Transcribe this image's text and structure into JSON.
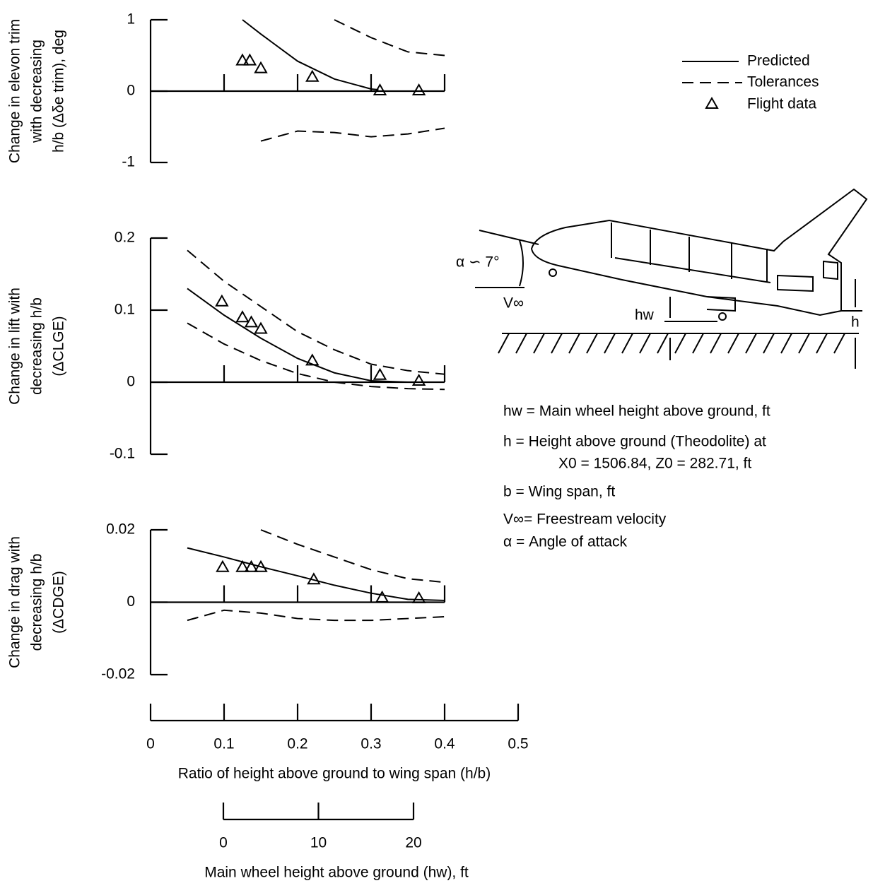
{
  "chart_data": {
    "type": "line",
    "xlim": [
      0,
      0.5
    ],
    "xticks": [
      0,
      0.1,
      0.2,
      0.3,
      0.4,
      0.5
    ],
    "xlabel": "Ratio of height above ground to wing span (h/b)",
    "hw_axis": {
      "lim": [
        0,
        20
      ],
      "ticks": [
        0,
        10,
        20
      ],
      "label": "Main wheel height above ground (hw), ft"
    },
    "panels": [
      {
        "ylabel": [
          "Change in elevon trim",
          "with decreasing",
          "h/b (Δδe trim), deg"
        ],
        "ylim": [
          -1,
          1
        ],
        "yticks": [
          -1,
          0,
          1
        ],
        "series": [
          {
            "name": "Predicted",
            "style": "solid",
            "color": "#000000",
            "x": [
              0.125,
              0.15,
              0.2,
              0.25,
              0.3,
              0.31
            ],
            "values": [
              1,
              0.8,
              0.42,
              0.17,
              0.03,
              0.02
            ]
          },
          {
            "name": "Tolerances",
            "style": "dashed",
            "color": "#000000",
            "x": [
              0.25,
              0.3,
              0.35,
              0.4
            ],
            "values": [
              1,
              0.75,
              0.55,
              0.5
            ]
          },
          {
            "name": "Tolerances",
            "style": "dashed",
            "color": "#000000",
            "x": [
              0.15,
              0.2,
              0.25,
              0.3,
              0.35,
              0.4
            ],
            "values": [
              -0.7,
              -0.56,
              -0.58,
              -0.64,
              -0.6,
              -0.52
            ]
          },
          {
            "name": "Flight data",
            "style": "triangle",
            "color": "#000000",
            "x": [
              0.125,
              0.135,
              0.15,
              0.22,
              0.312,
              0.365
            ],
            "values": [
              0.43,
              0.43,
              0.32,
              0.2,
              0.01,
              0.01
            ]
          }
        ]
      },
      {
        "ylabel": [
          "Change in lift with",
          "decreasing h/b",
          "(ΔCLGE)"
        ],
        "ylim": [
          -0.1,
          0.2
        ],
        "yticks": [
          -0.1,
          0,
          0.1,
          0.2
        ],
        "series": [
          {
            "name": "Predicted",
            "style": "solid",
            "color": "#000000",
            "x": [
              0.05,
              0.1,
              0.15,
              0.2,
              0.25,
              0.3,
              0.35
            ],
            "values": [
              0.13,
              0.093,
              0.061,
              0.033,
              0.013,
              0.002,
              0
            ]
          },
          {
            "name": "Tolerances",
            "style": "dashed",
            "color": "#000000",
            "x": [
              0.05,
              0.1,
              0.15,
              0.2,
              0.25,
              0.3,
              0.35,
              0.4
            ],
            "values": [
              0.183,
              0.14,
              0.105,
              0.07,
              0.045,
              0.025,
              0.016,
              0.011
            ]
          },
          {
            "name": "Tolerances",
            "style": "dashed",
            "color": "#000000",
            "x": [
              0.05,
              0.1,
              0.15,
              0.2,
              0.25,
              0.3,
              0.35,
              0.4
            ],
            "values": [
              0.082,
              0.053,
              0.03,
              0.012,
              0,
              -0.006,
              -0.009,
              -0.01
            ]
          },
          {
            "name": "Flight data",
            "style": "triangle",
            "color": "#000000",
            "x": [
              0.097,
              0.125,
              0.137,
              0.15,
              0.22,
              0.312,
              0.365
            ],
            "values": [
              0.112,
              0.09,
              0.083,
              0.074,
              0.03,
              0.01,
              0.002
            ]
          }
        ]
      },
      {
        "ylabel": [
          "Change in drag with",
          "decreasing h/b",
          "(ΔCDGE)"
        ],
        "ylim": [
          -0.02,
          0.02
        ],
        "yticks": [
          -0.02,
          0,
          0.02
        ],
        "series": [
          {
            "name": "Predicted",
            "style": "solid",
            "color": "#000000",
            "x": [
              0.05,
              0.1,
              0.15,
              0.2,
              0.25,
              0.3,
              0.35,
              0.4
            ],
            "values": [
              0.015,
              0.0125,
              0.0098,
              0.0073,
              0.0047,
              0.0025,
              0.0008,
              0.0005
            ]
          },
          {
            "name": "Tolerances",
            "style": "dashed",
            "color": "#000000",
            "x": [
              0.15,
              0.2,
              0.25,
              0.3,
              0.35,
              0.4
            ],
            "values": [
              0.02,
              0.016,
              0.0125,
              0.009,
              0.0065,
              0.0055
            ]
          },
          {
            "name": "Tolerances",
            "style": "dashed",
            "color": "#000000",
            "x": [
              0.05,
              0.1,
              0.15,
              0.2,
              0.25,
              0.3,
              0.35,
              0.4
            ],
            "values": [
              -0.005,
              -0.0022,
              -0.003,
              -0.0045,
              -0.005,
              -0.005,
              -0.0045,
              -0.004
            ]
          },
          {
            "name": "Flight data",
            "style": "triangle",
            "color": "#000000",
            "x": [
              0.098,
              0.125,
              0.137,
              0.15,
              0.222,
              0.315,
              0.365
            ],
            "values": [
              0.0097,
              0.0097,
              0.0097,
              0.0097,
              0.0063,
              0.0013,
              0.0011
            ]
          }
        ]
      }
    ]
  },
  "illustration": {
    "alpha": "α ∽ 7°",
    "v": "V∞",
    "hw": "hw",
    "h": "h",
    "definitions": [
      "hw = Main wheel height above ground, ft",
      "h  = Height above ground (Theodolite) at",
      "X0 = 1506.84,  Z0 = 282.71, ft",
      "b  = Wing span, ft",
      "V∞= Freestream velocity",
      "α = Angle of attack"
    ]
  }
}
